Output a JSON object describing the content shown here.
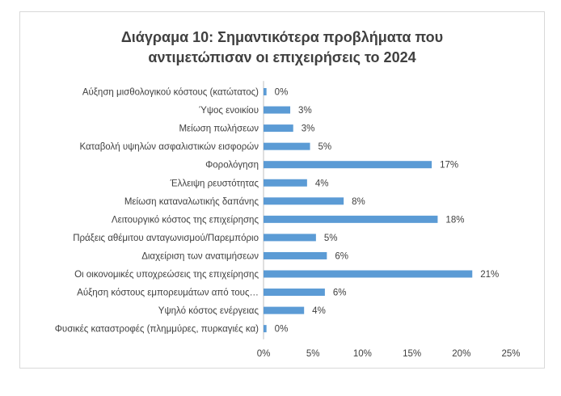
{
  "chart_data": {
    "type": "bar",
    "orientation": "horizontal",
    "title_lines": [
      "Διάγραμα 10: Σημαντικότερα προβλήματα που",
      "αντιμετώπισαν οι επιχειρήσεις το 2024"
    ],
    "categories": [
      "Αύξηση μισθολογικού κόστους (κατώτατος)",
      "Ύψος ενοικίου",
      "Μείωση πωλήσεων",
      "Καταβολή υψηλών ασφαλιστικών εισφορών",
      "Φορολόγηση",
      "Έλλειψη ρευστότητας",
      "Μείωση καταναλωτικής δαπάνης",
      "Λειτουργικό κόστος της επιχείρησης",
      "Πράξεις αθέμιτου ανταγωνισμού/Παρεμπόριο",
      "Διαχείριση των ανατιμήσεων",
      "Οι οικονομικές υποχρεώσεις της επιχείρησης",
      "Αύξηση κόστους εμπορευμάτων από τους…",
      "Υψηλό κόστος ενέργειας",
      "Φυσικές καταστροφές (πλημμύρες, πυρκαγιές κα)"
    ],
    "values": [
      0.3,
      2.7,
      3.0,
      4.7,
      17.0,
      4.4,
      8.1,
      17.6,
      5.3,
      6.4,
      21.1,
      6.2,
      4.1,
      0.3
    ],
    "value_labels": [
      "0%",
      "3%",
      "3%",
      "5%",
      "17%",
      "4%",
      "8%",
      "18%",
      "5%",
      "6%",
      "21%",
      "6%",
      "4%",
      "0%"
    ],
    "x_ticks": [
      "0%",
      "5%",
      "10%",
      "15%",
      "20%",
      "25%"
    ],
    "xlim": [
      0,
      25
    ],
    "bar_color": "#5b9bd5",
    "grid": false
  }
}
